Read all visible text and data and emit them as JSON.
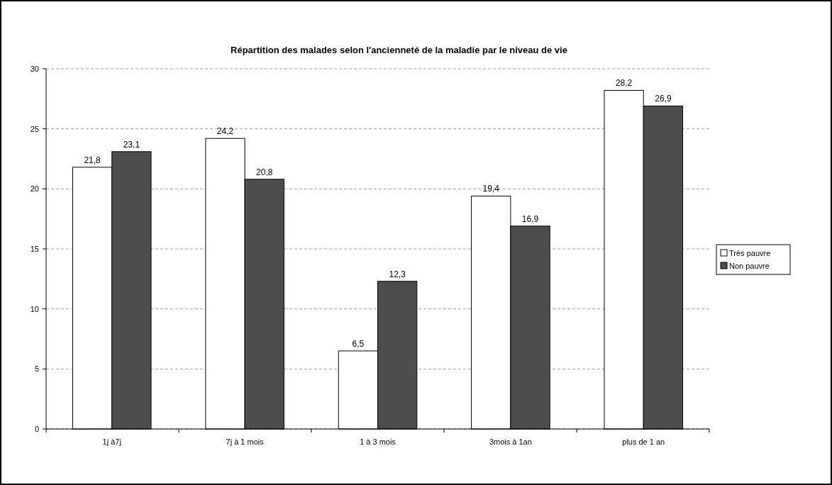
{
  "chart_data": {
    "type": "bar",
    "title": "Répartition des malades selon l'ancienneté de la maladie par le niveau de vie",
    "categories": [
      "1j à7j",
      "7j à 1 mois",
      "1  à 3 mois",
      "3mois à 1an",
      "plus de 1 an"
    ],
    "series": [
      {
        "name": "Très pauvre",
        "color": "#ffffff",
        "values": [
          21.8,
          24.2,
          6.5,
          19.4,
          28.2
        ],
        "value_labels": [
          "21,8",
          "24,2",
          "6,5",
          "19,4",
          "28,2"
        ]
      },
      {
        "name": "Non pauvre",
        "color": "#4d4d4d",
        "values": [
          23.1,
          20.8,
          12.3,
          16.9,
          26.9
        ],
        "value_labels": [
          "23,1",
          "20,8",
          "12,3",
          "16,9",
          "26,9"
        ]
      }
    ],
    "ylim": [
      0,
      30
    ],
    "yticks": [
      0,
      5,
      10,
      15,
      20,
      25,
      30
    ],
    "grid": "y",
    "legend": "right"
  }
}
